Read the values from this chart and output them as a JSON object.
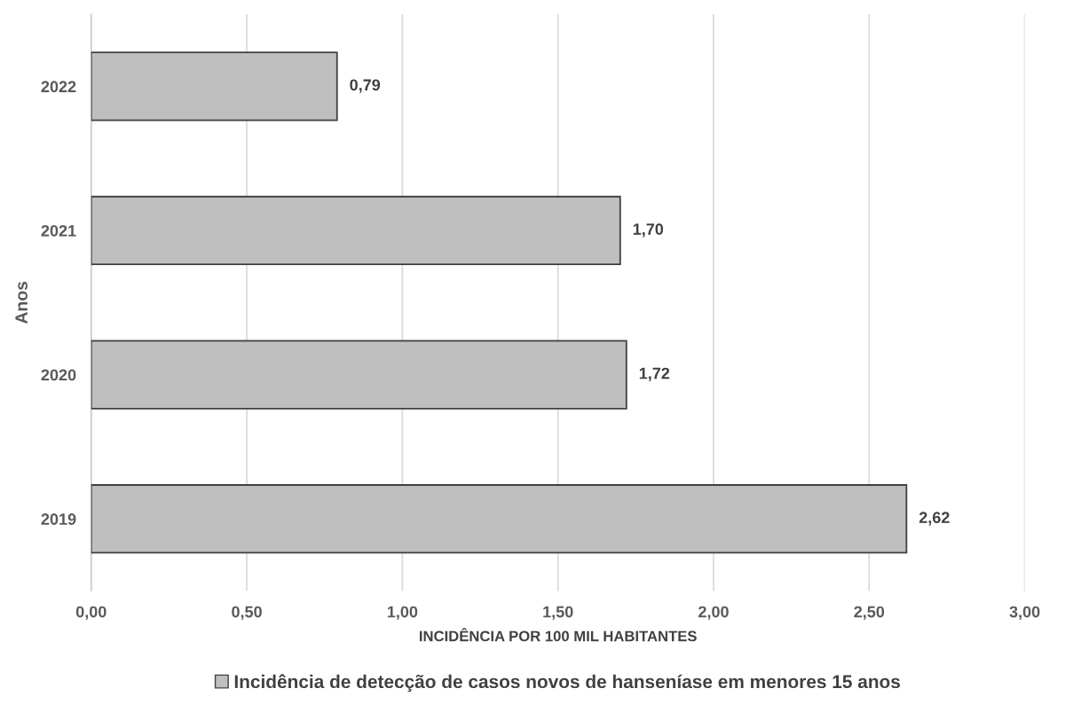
{
  "chart_data": {
    "type": "bar",
    "orientation": "horizontal",
    "xlabel": "INCIDÊNCIA POR 100 MIL HABITANTES",
    "ylabel": "Anos",
    "categories": [
      "2022",
      "2021",
      "2020",
      "2019"
    ],
    "series": [
      {
        "name": "Incidência de detecção de casos novos de hanseníase em menores 15 anos",
        "color": "#bfbfbf",
        "values": [
          0.79,
          1.7,
          1.72,
          2.62
        ],
        "value_labels": [
          "0,79",
          "1,70",
          "1,72",
          "2,62"
        ]
      }
    ],
    "xlim": [
      0,
      3.0
    ],
    "xticks": [
      {
        "value": 0,
        "label": "0,00"
      },
      {
        "value": 0.5,
        "label": "0,50"
      },
      {
        "value": 1.0,
        "label": "1,00"
      },
      {
        "value": 1.5,
        "label": "1,50"
      },
      {
        "value": 2.0,
        "label": "2,00"
      },
      {
        "value": 2.5,
        "label": "2,50"
      },
      {
        "value": 3.0,
        "label": "3,00"
      }
    ],
    "grid": "x",
    "legend": "bottom"
  }
}
